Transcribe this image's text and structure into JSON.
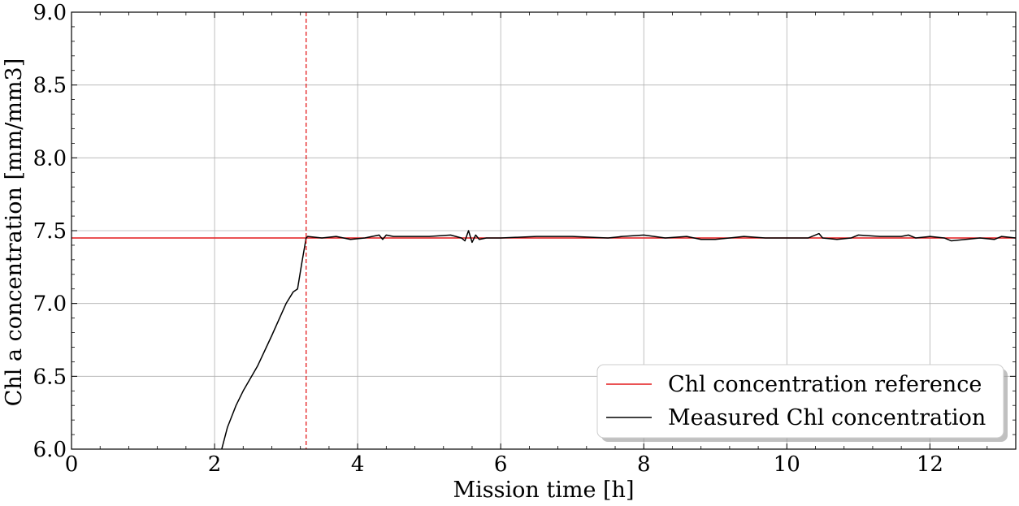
{
  "chart_data": {
    "type": "line",
    "title": "",
    "xlabel": "Mission time [h]",
    "ylabel": "Chl a concentration [mm/mm3]",
    "xlim": [
      0,
      13.2
    ],
    "ylim": [
      6.0,
      9.0
    ],
    "x_ticks": [
      0,
      2,
      4,
      6,
      8,
      10,
      12
    ],
    "x_tick_labels": [
      "0",
      "2",
      "4",
      "6",
      "8",
      "10",
      "12"
    ],
    "y_ticks": [
      6.0,
      6.5,
      7.0,
      7.5,
      8.0,
      8.5,
      9.0
    ],
    "y_tick_labels": [
      "6.0",
      "6.5",
      "7.0",
      "7.5",
      "8.0",
      "8.5",
      "9.0"
    ],
    "grid": true,
    "legend_position": "lower-right",
    "series": [
      {
        "name": "Chl concentration reference",
        "color": "#e41a1c",
        "style": "solid",
        "x": [
          0,
          13.2
        ],
        "y": [
          7.45,
          7.45
        ]
      },
      {
        "name": "Measured Chl concentration",
        "color": "#000000",
        "style": "solid",
        "x": [
          2.1,
          2.18,
          2.3,
          2.4,
          2.6,
          2.8,
          3.0,
          3.1,
          3.16,
          3.22,
          3.28,
          3.3,
          3.5,
          3.7,
          3.9,
          4.1,
          4.3,
          4.35,
          4.4,
          4.5,
          4.8,
          5.0,
          5.3,
          5.45,
          5.5,
          5.55,
          5.6,
          5.65,
          5.7,
          5.8,
          6.0,
          6.5,
          7.0,
          7.5,
          7.7,
          8.0,
          8.3,
          8.6,
          8.8,
          9.0,
          9.2,
          9.4,
          9.7,
          10.0,
          10.3,
          10.45,
          10.5,
          10.7,
          10.9,
          11.0,
          11.3,
          11.6,
          11.7,
          11.8,
          12.0,
          12.2,
          12.3,
          12.5,
          12.7,
          12.9,
          13.0,
          13.2
        ],
        "y": [
          6.0,
          6.15,
          6.3,
          6.4,
          6.57,
          6.78,
          7.0,
          7.08,
          7.1,
          7.28,
          7.45,
          7.46,
          7.45,
          7.46,
          7.44,
          7.45,
          7.47,
          7.44,
          7.47,
          7.46,
          7.46,
          7.46,
          7.47,
          7.45,
          7.43,
          7.5,
          7.42,
          7.47,
          7.44,
          7.45,
          7.45,
          7.46,
          7.46,
          7.45,
          7.46,
          7.47,
          7.45,
          7.46,
          7.44,
          7.44,
          7.45,
          7.46,
          7.45,
          7.45,
          7.45,
          7.48,
          7.45,
          7.44,
          7.45,
          7.47,
          7.46,
          7.46,
          7.47,
          7.45,
          7.46,
          7.45,
          7.43,
          7.44,
          7.45,
          7.44,
          7.46,
          7.45
        ]
      }
    ],
    "vlines": [
      {
        "x": 3.28,
        "color": "#e41a1c",
        "style": "dashed"
      }
    ],
    "legend_labels": [
      "Chl concentration reference",
      "Measured Chl concentration"
    ]
  }
}
